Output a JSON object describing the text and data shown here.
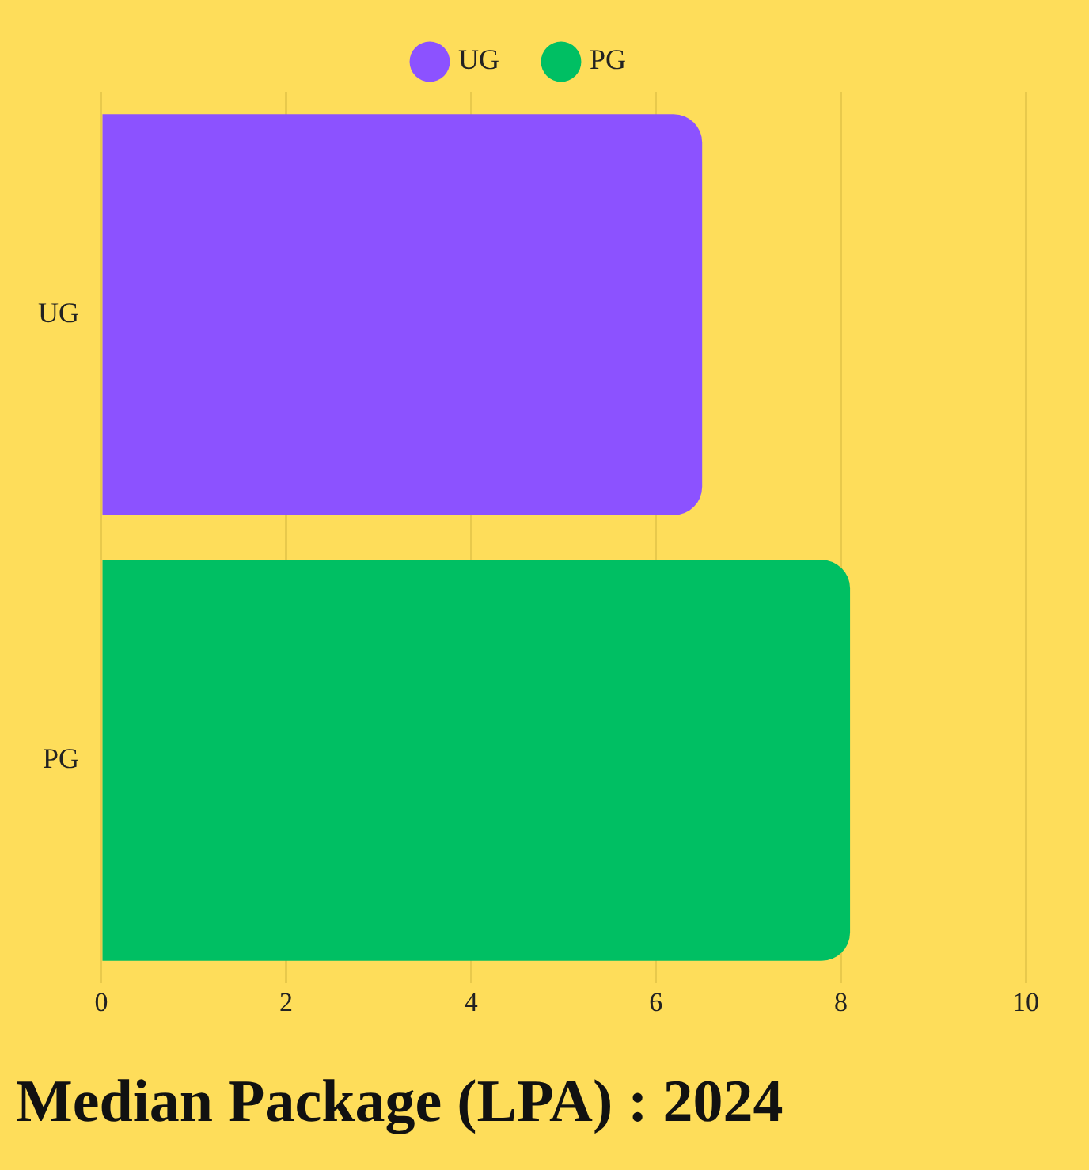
{
  "chart_data": {
    "type": "bar",
    "orientation": "horizontal",
    "title": "Median Package (LPA) : 2024",
    "categories": [
      "UG",
      "PG"
    ],
    "series": [
      {
        "name": "UG",
        "color": "#8c52ff",
        "values": [
          6.5,
          null
        ]
      },
      {
        "name": "PG",
        "color": "#00bf63",
        "values": [
          null,
          8.1
        ]
      }
    ],
    "xlim": [
      0,
      10
    ],
    "xticks": [
      0,
      2,
      4,
      6,
      8,
      10
    ],
    "grid": "x",
    "legend": "top"
  }
}
